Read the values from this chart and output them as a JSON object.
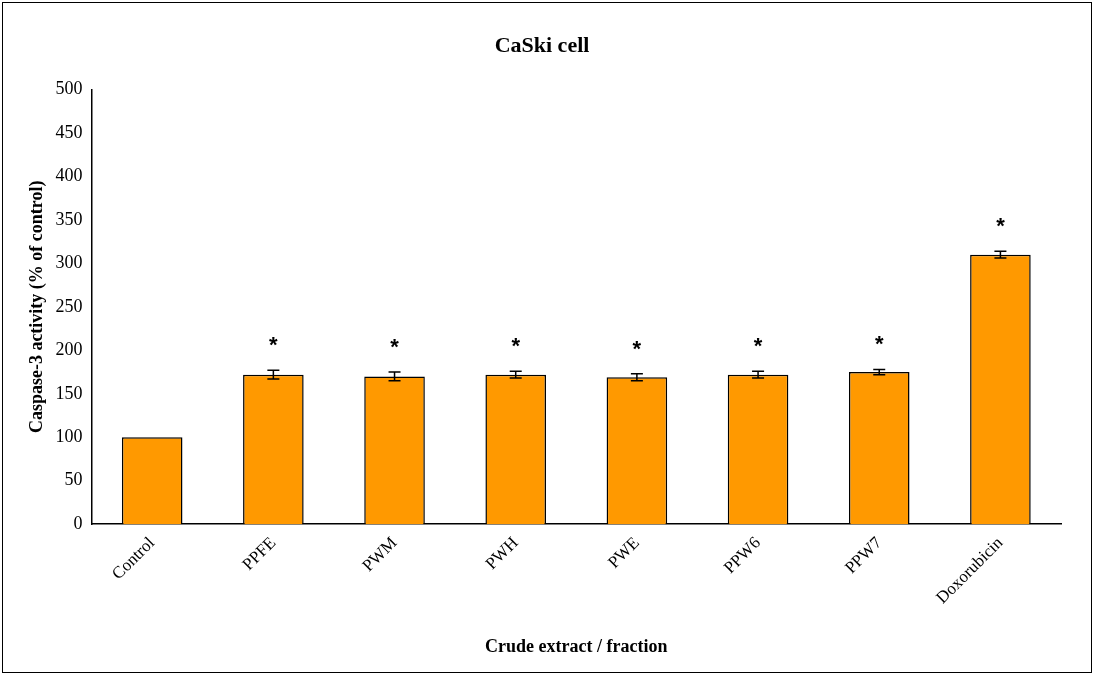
{
  "chart_data": {
    "type": "bar",
    "title": "CaSki cell",
    "xlabel": "Crude extract / fraction",
    "ylabel": "Caspase-3 activity (% of control)",
    "categories": [
      "Control",
      "PPFE",
      "PWM",
      "PWH",
      "PWE",
      "PPW6",
      "PPW7",
      "Doxorubicin"
    ],
    "values": [
      100,
      172,
      170,
      172,
      169,
      172,
      175,
      310
    ],
    "errors": [
      null,
      5,
      5,
      4,
      4,
      4,
      3,
      4
    ],
    "color": "#ff9900",
    "ylim": [
      0,
      500
    ],
    "yticks": [
      0,
      50,
      100,
      150,
      200,
      250,
      300,
      350,
      400,
      450,
      500
    ],
    "grid": false,
    "legend": false,
    "annotations": [
      {
        "text": "*",
        "x": "PPFE",
        "y": 172
      },
      {
        "text": "*",
        "x": "PWM",
        "y": 170
      },
      {
        "text": "*",
        "x": "PWH",
        "y": 172
      },
      {
        "text": "*",
        "x": "PWE",
        "y": 169
      },
      {
        "text": "*",
        "x": "PPW6",
        "y": 172
      },
      {
        "text": "*",
        "x": "PPW7",
        "y": 175
      },
      {
        "text": "*",
        "x": "Doxorubicin",
        "y": 310
      }
    ]
  }
}
